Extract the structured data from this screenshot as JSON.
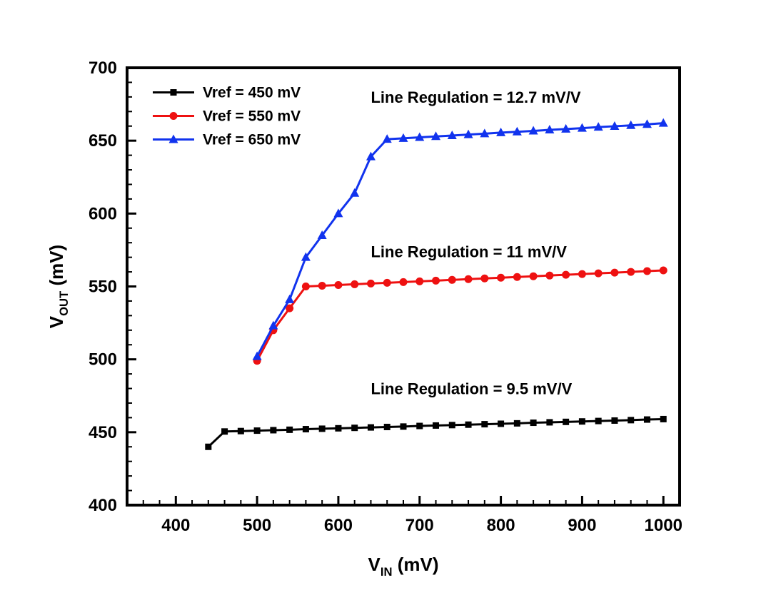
{
  "chart_data": {
    "type": "line",
    "title": "",
    "xlabel": {
      "pre": "V",
      "sub": "IN",
      "post": " (mV)"
    },
    "ylabel": {
      "pre": "V",
      "sub": "OUT",
      "post": " (mV)"
    },
    "xlim": [
      340,
      1020
    ],
    "ylim": [
      400,
      700
    ],
    "xticks": [
      400,
      500,
      600,
      700,
      800,
      900,
      1000
    ],
    "yticks": [
      400,
      450,
      500,
      550,
      600,
      650,
      700
    ],
    "x_minor_step": 20,
    "y_minor_step": 10,
    "grid": false,
    "legend_position": "top-left",
    "series": [
      {
        "name": "Vref = 450 mV",
        "color": "#000000",
        "marker": "square",
        "line_regulation": "9.5 mV/V",
        "x": [
          440,
          460,
          480,
          500,
          520,
          540,
          560,
          580,
          600,
          620,
          640,
          660,
          680,
          700,
          720,
          740,
          760,
          780,
          800,
          820,
          840,
          860,
          880,
          900,
          920,
          940,
          960,
          980,
          1000
        ],
        "y": [
          440,
          450.5,
          450.8,
          451.1,
          451.4,
          451.7,
          452.1,
          452.4,
          452.7,
          453,
          453.3,
          453.6,
          453.9,
          454.3,
          454.6,
          454.9,
          455.2,
          455.5,
          455.8,
          456.1,
          456.5,
          456.8,
          457.1,
          457.4,
          457.7,
          458,
          458.3,
          458.7,
          459
        ]
      },
      {
        "name": "Vref = 550 mV",
        "color": "#ee1111",
        "marker": "circle",
        "line_regulation": "11 mV/V",
        "x": [
          500,
          520,
          540,
          560,
          580,
          600,
          620,
          640,
          660,
          680,
          700,
          720,
          740,
          760,
          780,
          800,
          820,
          840,
          860,
          880,
          900,
          920,
          940,
          960,
          980,
          1000
        ],
        "y": [
          499,
          520,
          535,
          550,
          550.5,
          551,
          551.5,
          552,
          552.5,
          553,
          553.5,
          554,
          554.5,
          555,
          555.5,
          556,
          556.5,
          557,
          557.5,
          558,
          558.5,
          559,
          559.5,
          560,
          560.5,
          561
        ]
      },
      {
        "name": "Vref = 650 mV",
        "color": "#1133ee",
        "marker": "triangle",
        "line_regulation": "12.7 mV/V",
        "x": [
          500,
          520,
          540,
          560,
          580,
          600,
          620,
          640,
          660,
          680,
          700,
          720,
          740,
          760,
          780,
          800,
          820,
          840,
          860,
          880,
          900,
          920,
          940,
          960,
          980,
          1000
        ],
        "y": [
          502,
          523,
          541,
          570,
          585,
          600,
          614,
          639,
          651,
          651.6,
          652.3,
          652.9,
          653.5,
          654.2,
          654.8,
          655.5,
          656.1,
          656.7,
          657.4,
          658,
          658.6,
          659.3,
          659.9,
          660.5,
          661.2,
          662
        ]
      }
    ],
    "annotations": [
      {
        "text": "Line Regulation = 12.7 mV/V",
        "x": 640,
        "y": 676
      },
      {
        "text": "Line Regulation = 11 mV/V",
        "x": 640,
        "y": 570
      },
      {
        "text": "Line Regulation = 9.5 mV/V",
        "x": 640,
        "y": 476
      }
    ]
  }
}
